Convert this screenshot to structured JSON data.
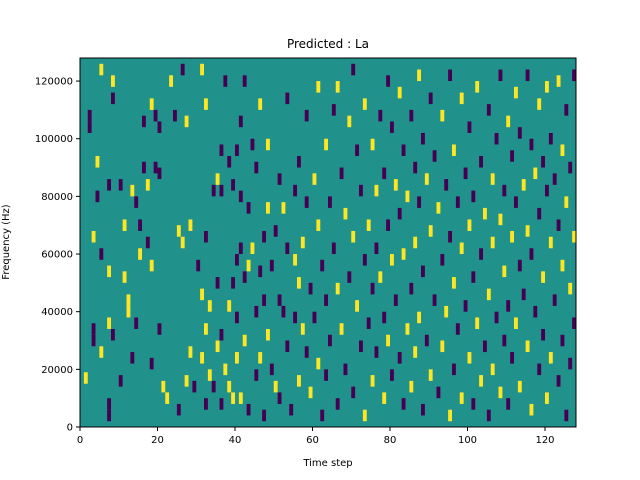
{
  "chart_data": {
    "type": "heatmap",
    "title": "Predicted : La",
    "xlabel": "Time step",
    "ylabel": "Frequency (Hz)",
    "xlim": [
      0,
      128
    ],
    "ylim": [
      0,
      128000
    ],
    "x_ticks": [
      0,
      20,
      40,
      60,
      80,
      100,
      120
    ],
    "y_ticks": [
      0,
      20000,
      40000,
      60000,
      80000,
      100000,
      120000
    ],
    "x_tick_labels": [
      "0",
      "20",
      "40",
      "60",
      "80",
      "100",
      "120"
    ],
    "y_tick_labels": [
      "0",
      "20000",
      "40000",
      "60000",
      "80000",
      "100000",
      "120000"
    ],
    "colormap": "viridis",
    "grid": false,
    "n_time_steps": 128,
    "n_freq_bins": 128,
    "background_value": 0,
    "colors": {
      "background": "#21918c",
      "high": "#fde725",
      "low": "#440154"
    },
    "cells": [
      [
        1,
        5000,
        0
      ],
      [
        1,
        17000,
        1
      ],
      [
        2,
        104000,
        -1
      ],
      [
        2,
        108000,
        -1
      ],
      [
        3,
        66000,
        1
      ],
      [
        3,
        34000,
        -1
      ],
      [
        3,
        30000,
        -1
      ],
      [
        4,
        92000,
        1
      ],
      [
        4,
        80000,
        -1
      ],
      [
        5,
        124000,
        1
      ],
      [
        5,
        60000,
        -1
      ],
      [
        5,
        26000,
        1
      ],
      [
        7,
        84000,
        -1
      ],
      [
        7,
        54000,
        1
      ],
      [
        7,
        36000,
        1
      ],
      [
        7,
        8000,
        -1
      ],
      [
        7,
        4000,
        -1
      ],
      [
        8,
        120000,
        1
      ],
      [
        8,
        114000,
        -1
      ],
      [
        8,
        32000,
        -1
      ],
      [
        10,
        84000,
        -1
      ],
      [
        10,
        16000,
        -1
      ],
      [
        11,
        70000,
        1
      ],
      [
        11,
        52000,
        1
      ],
      [
        12,
        44000,
        1
      ],
      [
        12,
        40000,
        1
      ],
      [
        13,
        82000,
        1
      ],
      [
        13,
        24000,
        -1
      ],
      [
        14,
        78000,
        -1
      ],
      [
        14,
        36000,
        -1
      ],
      [
        15,
        70000,
        -1
      ],
      [
        15,
        60000,
        1
      ],
      [
        16,
        106000,
        -1
      ],
      [
        16,
        90000,
        -1
      ],
      [
        17,
        84000,
        1
      ],
      [
        17,
        64000,
        -1
      ],
      [
        18,
        112000,
        1
      ],
      [
        18,
        56000,
        1
      ],
      [
        18,
        22000,
        -1
      ],
      [
        19,
        108000,
        -1
      ],
      [
        19,
        90000,
        -1
      ],
      [
        20,
        104000,
        -1
      ],
      [
        20,
        88000,
        -1
      ],
      [
        20,
        34000,
        -1
      ],
      [
        21,
        14000,
        1
      ],
      [
        22,
        10000,
        1
      ],
      [
        23,
        120000,
        1
      ],
      [
        24,
        108000,
        -1
      ],
      [
        25,
        68000,
        1
      ],
      [
        25,
        6000,
        -1
      ],
      [
        26,
        124000,
        -1
      ],
      [
        26,
        64000,
        1
      ],
      [
        27,
        106000,
        1
      ],
      [
        27,
        16000,
        1
      ],
      [
        28,
        70000,
        1
      ],
      [
        28,
        26000,
        1
      ],
      [
        29,
        14000,
        -1
      ],
      [
        30,
        56000,
        -1
      ],
      [
        31,
        124000,
        1
      ],
      [
        31,
        46000,
        1
      ],
      [
        31,
        24000,
        1
      ],
      [
        32,
        112000,
        1
      ],
      [
        32,
        66000,
        -1
      ],
      [
        32,
        34000,
        1
      ],
      [
        32,
        8000,
        -1
      ],
      [
        33,
        42000,
        1
      ],
      [
        33,
        18000,
        1
      ],
      [
        34,
        82000,
        -1
      ],
      [
        34,
        14000,
        -1
      ],
      [
        35,
        86000,
        1
      ],
      [
        35,
        50000,
        -1
      ],
      [
        35,
        28000,
        1
      ],
      [
        36,
        96000,
        -1
      ],
      [
        36,
        82000,
        -1
      ],
      [
        36,
        32000,
        -1
      ],
      [
        36,
        8000,
        -1
      ],
      [
        37,
        120000,
        -1
      ],
      [
        37,
        20000,
        1
      ],
      [
        38,
        92000,
        -1
      ],
      [
        38,
        42000,
        1
      ],
      [
        38,
        14000,
        1
      ],
      [
        39,
        84000,
        -1
      ],
      [
        39,
        50000,
        -1
      ],
      [
        39,
        10000,
        1
      ],
      [
        40,
        96000,
        -1
      ],
      [
        40,
        58000,
        -1
      ],
      [
        40,
        38000,
        -1
      ],
      [
        40,
        24000,
        1
      ],
      [
        41,
        106000,
        -1
      ],
      [
        41,
        80000,
        -1
      ],
      [
        41,
        62000,
        -1
      ],
      [
        41,
        10000,
        1
      ],
      [
        42,
        120000,
        -1
      ],
      [
        42,
        52000,
        -1
      ],
      [
        42,
        30000,
        1
      ],
      [
        43,
        76000,
        -1
      ],
      [
        43,
        56000,
        1
      ],
      [
        43,
        6000,
        -1
      ],
      [
        44,
        98000,
        -1
      ],
      [
        44,
        62000,
        1
      ],
      [
        45,
        90000,
        -1
      ],
      [
        45,
        40000,
        -1
      ],
      [
        45,
        18000,
        -1
      ],
      [
        46,
        112000,
        1
      ],
      [
        46,
        54000,
        -1
      ],
      [
        46,
        24000,
        1
      ],
      [
        47,
        66000,
        -1
      ],
      [
        47,
        44000,
        -1
      ],
      [
        47,
        4000,
        -1
      ],
      [
        48,
        98000,
        1
      ],
      [
        48,
        76000,
        1
      ],
      [
        48,
        32000,
        1
      ],
      [
        49,
        56000,
        -1
      ],
      [
        49,
        20000,
        -1
      ],
      [
        50,
        68000,
        -1
      ],
      [
        50,
        14000,
        1
      ],
      [
        51,
        86000,
        -1
      ],
      [
        51,
        44000,
        -1
      ],
      [
        51,
        10000,
        -1
      ],
      [
        52,
        76000,
        1
      ],
      [
        52,
        40000,
        -1
      ],
      [
        53,
        114000,
        -1
      ],
      [
        53,
        62000,
        -1
      ],
      [
        53,
        28000,
        -1
      ],
      [
        54,
        6000,
        -1
      ],
      [
        55,
        82000,
        -1
      ],
      [
        55,
        58000,
        1
      ],
      [
        55,
        38000,
        -1
      ],
      [
        56,
        92000,
        -1
      ],
      [
        56,
        50000,
        1
      ],
      [
        56,
        16000,
        1
      ],
      [
        57,
        64000,
        1
      ],
      [
        57,
        34000,
        1
      ],
      [
        58,
        108000,
        -1
      ],
      [
        58,
        78000,
        -1
      ],
      [
        58,
        26000,
        -1
      ],
      [
        59,
        48000,
        -1
      ],
      [
        59,
        12000,
        1
      ],
      [
        60,
        86000,
        1
      ],
      [
        60,
        38000,
        -1
      ],
      [
        61,
        118000,
        1
      ],
      [
        61,
        70000,
        1
      ],
      [
        61,
        22000,
        1
      ],
      [
        62,
        56000,
        -1
      ],
      [
        62,
        4000,
        -1
      ],
      [
        63,
        98000,
        1
      ],
      [
        63,
        44000,
        -1
      ],
      [
        63,
        18000,
        -1
      ],
      [
        64,
        78000,
        -1
      ],
      [
        64,
        30000,
        -1
      ],
      [
        65,
        110000,
        -1
      ],
      [
        65,
        62000,
        -1
      ],
      [
        66,
        118000,
        1
      ],
      [
        66,
        48000,
        1
      ],
      [
        66,
        8000,
        -1
      ],
      [
        67,
        88000,
        -1
      ],
      [
        67,
        34000,
        1
      ],
      [
        68,
        74000,
        1
      ],
      [
        68,
        20000,
        -1
      ],
      [
        69,
        106000,
        1
      ],
      [
        69,
        52000,
        -1
      ],
      [
        70,
        124000,
        -1
      ],
      [
        70,
        66000,
        1
      ],
      [
        70,
        12000,
        -1
      ],
      [
        71,
        96000,
        -1
      ],
      [
        71,
        42000,
        1
      ],
      [
        72,
        82000,
        -1
      ],
      [
        72,
        28000,
        -1
      ],
      [
        73,
        112000,
        1
      ],
      [
        73,
        58000,
        -1
      ],
      [
        73,
        4000,
        1
      ],
      [
        74,
        70000,
        1
      ],
      [
        74,
        36000,
        -1
      ],
      [
        75,
        98000,
        1
      ],
      [
        75,
        48000,
        -1
      ],
      [
        75,
        16000,
        1
      ],
      [
        76,
        82000,
        1
      ],
      [
        76,
        62000,
        -1
      ],
      [
        76,
        26000,
        -1
      ],
      [
        77,
        108000,
        -1
      ],
      [
        77,
        52000,
        1
      ],
      [
        78,
        88000,
        -1
      ],
      [
        78,
        38000,
        -1
      ],
      [
        78,
        10000,
        1
      ],
      [
        79,
        120000,
        -1
      ],
      [
        79,
        70000,
        -1
      ],
      [
        79,
        30000,
        1
      ],
      [
        80,
        104000,
        -1
      ],
      [
        80,
        58000,
        1
      ],
      [
        80,
        18000,
        -1
      ],
      [
        81,
        84000,
        1
      ],
      [
        81,
        44000,
        -1
      ],
      [
        82,
        116000,
        1
      ],
      [
        82,
        74000,
        -1
      ],
      [
        82,
        24000,
        -1
      ],
      [
        83,
        96000,
        -1
      ],
      [
        83,
        60000,
        1
      ],
      [
        83,
        8000,
        -1
      ],
      [
        84,
        80000,
        1
      ],
      [
        84,
        34000,
        1
      ],
      [
        85,
        108000,
        -1
      ],
      [
        85,
        48000,
        -1
      ],
      [
        85,
        14000,
        1
      ],
      [
        86,
        90000,
        -1
      ],
      [
        86,
        64000,
        1
      ],
      [
        86,
        26000,
        1
      ],
      [
        87,
        122000,
        1
      ],
      [
        87,
        78000,
        -1
      ],
      [
        87,
        38000,
        1
      ],
      [
        88,
        100000,
        -1
      ],
      [
        88,
        54000,
        -1
      ],
      [
        88,
        6000,
        -1
      ],
      [
        89,
        86000,
        1
      ],
      [
        89,
        30000,
        -1
      ],
      [
        90,
        114000,
        -1
      ],
      [
        90,
        68000,
        1
      ],
      [
        90,
        18000,
        1
      ],
      [
        91,
        94000,
        -1
      ],
      [
        91,
        44000,
        -1
      ],
      [
        92,
        76000,
        1
      ],
      [
        92,
        12000,
        -1
      ],
      [
        93,
        108000,
        1
      ],
      [
        93,
        58000,
        -1
      ],
      [
        93,
        28000,
        1
      ],
      [
        94,
        84000,
        -1
      ],
      [
        94,
        40000,
        1
      ],
      [
        95,
        122000,
        -1
      ],
      [
        95,
        66000,
        -1
      ],
      [
        95,
        4000,
        1
      ],
      [
        96,
        96000,
        1
      ],
      [
        96,
        50000,
        1
      ],
      [
        96,
        20000,
        -1
      ],
      [
        97,
        78000,
        -1
      ],
      [
        97,
        34000,
        -1
      ],
      [
        98,
        114000,
        1
      ],
      [
        98,
        62000,
        1
      ],
      [
        98,
        10000,
        1
      ],
      [
        99,
        88000,
        -1
      ],
      [
        99,
        42000,
        -1
      ],
      [
        100,
        104000,
        -1
      ],
      [
        100,
        70000,
        1
      ],
      [
        100,
        24000,
        1
      ],
      [
        101,
        80000,
        -1
      ],
      [
        101,
        52000,
        -1
      ],
      [
        101,
        8000,
        -1
      ],
      [
        102,
        118000,
        1
      ],
      [
        102,
        36000,
        1
      ],
      [
        103,
        92000,
        -1
      ],
      [
        103,
        60000,
        -1
      ],
      [
        103,
        16000,
        1
      ],
      [
        104,
        74000,
        1
      ],
      [
        104,
        28000,
        -1
      ],
      [
        105,
        110000,
        -1
      ],
      [
        105,
        46000,
        1
      ],
      [
        105,
        4000,
        -1
      ],
      [
        106,
        86000,
        1
      ],
      [
        106,
        64000,
        1
      ],
      [
        106,
        20000,
        1
      ],
      [
        107,
        100000,
        -1
      ],
      [
        107,
        38000,
        -1
      ],
      [
        108,
        122000,
        -1
      ],
      [
        108,
        72000,
        1
      ],
      [
        108,
        12000,
        1
      ],
      [
        109,
        82000,
        -1
      ],
      [
        109,
        54000,
        1
      ],
      [
        109,
        30000,
        -1
      ],
      [
        110,
        106000,
        1
      ],
      [
        110,
        42000,
        -1
      ],
      [
        110,
        8000,
        -1
      ],
      [
        111,
        94000,
        -1
      ],
      [
        111,
        66000,
        1
      ],
      [
        111,
        24000,
        -1
      ],
      [
        112,
        116000,
        1
      ],
      [
        112,
        78000,
        -1
      ],
      [
        112,
        36000,
        1
      ],
      [
        113,
        102000,
        -1
      ],
      [
        113,
        56000,
        -1
      ],
      [
        113,
        14000,
        1
      ],
      [
        114,
        84000,
        1
      ],
      [
        114,
        46000,
        -1
      ],
      [
        115,
        122000,
        -1
      ],
      [
        115,
        68000,
        1
      ],
      [
        115,
        28000,
        1
      ],
      [
        116,
        98000,
        -1
      ],
      [
        116,
        60000,
        -1
      ],
      [
        116,
        6000,
        1
      ],
      [
        117,
        88000,
        1
      ],
      [
        117,
        40000,
        -1
      ],
      [
        118,
        112000,
        1
      ],
      [
        118,
        74000,
        -1
      ],
      [
        118,
        20000,
        -1
      ],
      [
        119,
        92000,
        -1
      ],
      [
        119,
        52000,
        1
      ],
      [
        119,
        32000,
        -1
      ],
      [
        120,
        118000,
        1
      ],
      [
        120,
        82000,
        -1
      ],
      [
        120,
        10000,
        1
      ],
      [
        121,
        100000,
        -1
      ],
      [
        121,
        64000,
        1
      ],
      [
        121,
        24000,
        1
      ],
      [
        122,
        86000,
        -1
      ],
      [
        122,
        44000,
        -1
      ],
      [
        123,
        120000,
        1
      ],
      [
        123,
        70000,
        -1
      ],
      [
        123,
        16000,
        -1
      ],
      [
        124,
        96000,
        1
      ],
      [
        124,
        56000,
        1
      ],
      [
        124,
        30000,
        -1
      ],
      [
        125,
        110000,
        -1
      ],
      [
        125,
        78000,
        1
      ],
      [
        125,
        4000,
        -1
      ],
      [
        126,
        90000,
        -1
      ],
      [
        126,
        48000,
        1
      ],
      [
        126,
        22000,
        -1
      ],
      [
        127,
        122000,
        -1
      ],
      [
        127,
        66000,
        1
      ],
      [
        127,
        36000,
        -1
      ]
    ]
  }
}
